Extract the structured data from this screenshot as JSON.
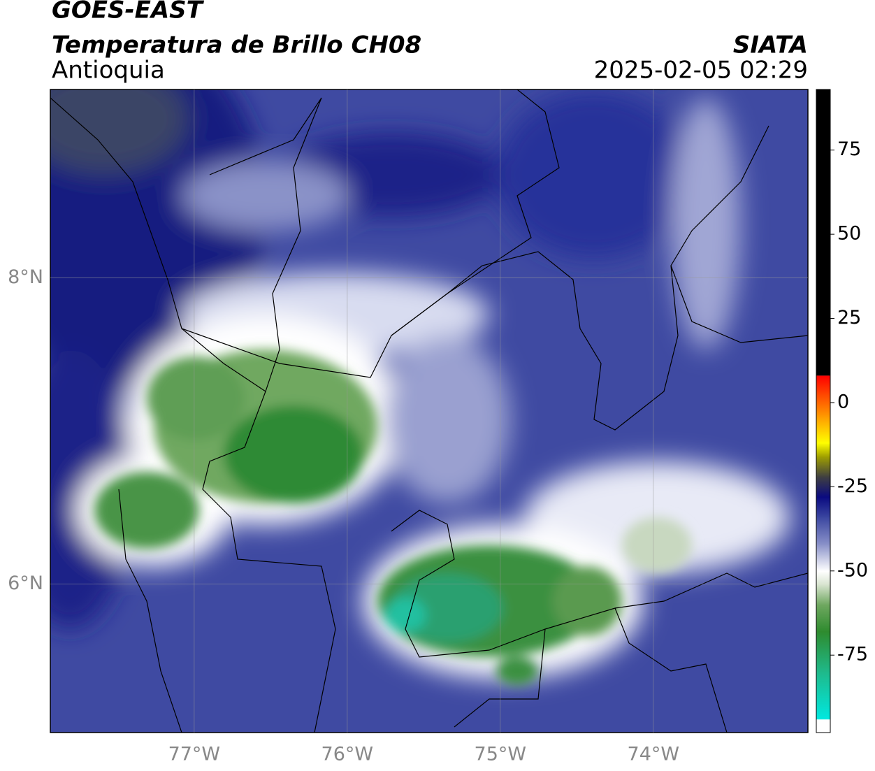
{
  "header": {
    "title": "GOES-EAST",
    "subtitle": "Temperatura de Brillo CH08",
    "region": "Antioquia",
    "source": "SIATA",
    "timestamp": "2025-02-05 02:29"
  },
  "map": {
    "xlim": [
      -77.94,
      -72.99
    ],
    "ylim": [
      5.03,
      9.23
    ],
    "xticks": [
      {
        "value": -77,
        "label": "77°W"
      },
      {
        "value": -76,
        "label": "76°W"
      },
      {
        "value": -75,
        "label": "75°W"
      },
      {
        "value": -74,
        "label": "74°W"
      }
    ],
    "yticks": [
      {
        "value": 8,
        "label": "8°N"
      },
      {
        "value": 6,
        "label": "6°N"
      }
    ],
    "grid": true
  },
  "colorbar": {
    "lim": [
      -98,
      93
    ],
    "ticks": [
      75,
      50,
      25,
      0,
      -25,
      -50,
      -75
    ],
    "under_color": "#ffffff",
    "over_color": "#000000",
    "stops": [
      {
        "value": -94,
        "color": "#00e8e0"
      },
      {
        "value": -80,
        "color": "#1fb98a"
      },
      {
        "value": -68,
        "color": "#2e8b2e"
      },
      {
        "value": -60,
        "color": "#6fa860"
      },
      {
        "value": -54,
        "color": "#d8e4d0"
      },
      {
        "value": -50,
        "color": "#ffffff"
      },
      {
        "value": -42,
        "color": "#8890c8"
      },
      {
        "value": -34,
        "color": "#3a46a0"
      },
      {
        "value": -28,
        "color": "#0a0a80"
      },
      {
        "value": -22,
        "color": "#404040"
      },
      {
        "value": -16,
        "color": "#a0a000"
      },
      {
        "value": -12,
        "color": "#ffff00"
      },
      {
        "value": -4,
        "color": "#ff9900"
      },
      {
        "value": 8,
        "color": "#ff0000"
      }
    ]
  }
}
